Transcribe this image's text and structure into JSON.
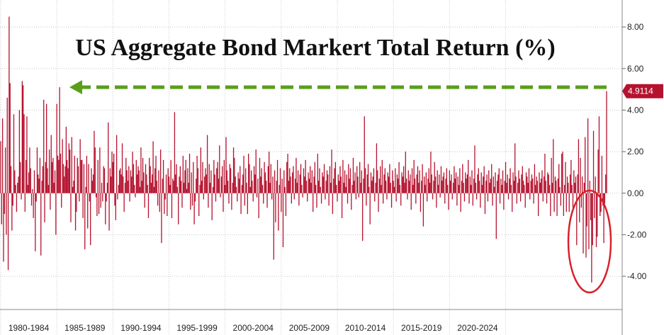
{
  "chart_data": {
    "type": "bar",
    "title": "US Aggregate Bond Markert Total Return (%)",
    "xlabel": "",
    "ylabel": "",
    "ylim": [
      -5.6,
      9.3
    ],
    "grid": true,
    "y_ticks": [
      "8.00",
      "6.00",
      "4.00",
      "2.00",
      "0.00",
      "-2.00",
      "-4.00"
    ],
    "y_tick_values": [
      8,
      6,
      4,
      2,
      0,
      -2,
      -4
    ],
    "x_period_labels": [
      "1980-1984",
      "1985-1989",
      "1990-1994",
      "1995-1999",
      "2000-2004",
      "2005-2009",
      "2010-2014",
      "2015-2019",
      "2020-2024"
    ],
    "start_year": 1980,
    "months_per_period": 60,
    "bar_color": "#b5122e",
    "arrow_color": "#5a9e1a",
    "highlight_color": "#d8202a",
    "last_value_label": "4.9114",
    "last_value": 4.9114,
    "arrow_to_value": 5.1,
    "values": [
      2.5,
      -1.5,
      3.6,
      -3.3,
      -1.0,
      2.2,
      -2.0,
      4.6,
      -3.7,
      8.5,
      5.3,
      1.3,
      -1.8,
      -0.6,
      3.8,
      1.1,
      0.4,
      -0.9,
      0.5,
      0.8,
      4.0,
      1.5,
      -0.3,
      5.4,
      5.2,
      3.8,
      -0.9,
      1.6,
      3.7,
      0.4,
      1.0,
      2.2,
      1.2,
      -0.6,
      0.2,
      -1.2,
      1.1,
      -2.8,
      -0.4,
      2.2,
      0.9,
      0.7,
      1.7,
      -3.0,
      0.6,
      1.3,
      4.5,
      -1.4,
      1.5,
      4.3,
      1.2,
      0.4,
      2.1,
      -0.8,
      2.8,
      1.5,
      1.7,
      0.5,
      1.1,
      -2.0,
      4.3,
      1.8,
      1.6,
      5.1,
      1.9,
      -0.7,
      2.6,
      1.4,
      0.8,
      1.3,
      3.2,
      1.6,
      1.2,
      2.4,
      2.1,
      -1.4,
      2.7,
      0.3,
      0.6,
      1.8,
      -1.8,
      -0.9,
      1.7,
      1.3,
      -0.4,
      2.6,
      1.6,
      1.6,
      -1.2,
      1.4,
      -2.7,
      0.3,
      1.8,
      -1.7,
      1.4,
      -0.4,
      -2.5,
      1.2,
      0.6,
      0.9,
      3.0,
      2.2,
      -0.2,
      -1.1,
      1.6,
      -1.0,
      2.2,
      -0.7,
      0.5,
      -0.4,
      1.3,
      1.2,
      -1.5,
      -0.4,
      0.5,
      3.4,
      -1.8,
      1.2,
      0.8,
      2.0,
      1.5,
      1.9,
      -0.6,
      -1.3,
      2.8,
      -0.3,
      0.4,
      1.1,
      1.2,
      0.9,
      2.4,
      0.8,
      -0.9,
      0.5,
      1.7,
      1.1,
      0.6,
      1.3,
      -0.4,
      1.1,
      0.8,
      2.0,
      1.4,
      0.4,
      -0.2,
      1.6,
      0.9,
      1.3,
      1.1,
      0.3,
      2.2,
      0.6,
      1.7,
      1.0,
      -0.7,
      1.4,
      0.9,
      0.4,
      -1.2,
      1.7,
      1.3,
      0.5,
      0.9,
      2.5,
      0.3,
      1.2,
      1.8,
      0.6,
      -0.6,
      1.1,
      -0.9,
      2.1,
      -2.4,
      0.7,
      1.6,
      -1.0,
      -0.3,
      0.9,
      -1.1,
      1.2,
      0.8,
      0.4,
      1.6,
      -1.2,
      0.7,
      0.6,
      3.9,
      0.9,
      1.4,
      0.3,
      -1.5,
      0.8,
      1.3,
      0.6,
      -0.7,
      1.8,
      0.5,
      1.1,
      1.6,
      0.2,
      1.2,
      0.5,
      1.9,
      -0.8,
      1.0,
      -0.6,
      1.5,
      -1.5,
      -0.4,
      0.7,
      1.8,
      1.2,
      -1.1,
      0.4,
      2.2,
      0.6,
      1.5,
      -0.3,
      0.8,
      1.2,
      0.9,
      2.8,
      -0.7,
      1.4,
      0.5,
      1.1,
      -1.3,
      0.3,
      1.6,
      0.9,
      -0.4,
      1.2,
      1.5,
      0.7,
      2.3,
      -0.2,
      0.8,
      1.3,
      -0.9,
      1.6,
      0.4,
      2.7,
      1.1,
      0.6,
      -0.5,
      1.4,
      1.2,
      -0.8,
      0.5,
      2.2,
      1.7,
      0.8,
      0.3,
      -0.4,
      1.0,
      0.7,
      1.3,
      -1.0,
      0.4,
      0.9,
      1.8,
      -0.6,
      1.2,
      0.5,
      -1.0,
      1.9,
      1.4,
      0.3,
      1.1,
      0.6,
      -0.4,
      1.3,
      0.9,
      2.1,
      -0.2,
      0.7,
      -1.2,
      1.7,
      0.8,
      1.2,
      0.4,
      -0.5,
      1.5,
      1.0,
      0.6,
      -0.7,
      1.3,
      2.0,
      0.5,
      1.4,
      -0.3,
      0.8,
      -3.2,
      1.1,
      -1.4,
      0.6,
      1.6,
      -1.8,
      0.4,
      1.2,
      -0.9,
      0.7,
      -2.6,
      1.1,
      0.3,
      -1.1,
      1.5,
      1.9,
      0.6,
      1.2,
      0.8,
      -0.5,
      1.0,
      1.3,
      -0.3,
      0.7,
      1.7,
      0.5,
      1.1,
      -0.6,
      0.9,
      1.4,
      0.4,
      -0.2,
      1.2,
      0.8,
      1.6,
      0.6,
      -0.4,
      1.0,
      0.7,
      1.3,
      0.5,
      1.1,
      -0.9,
      0.8,
      1.5,
      0.4,
      -0.7,
      1.9,
      0.6,
      1.2,
      0.3,
      -0.5,
      1.0,
      0.8,
      1.4,
      -0.3,
      0.6,
      1.1,
      0.9,
      -0.6,
      1.3,
      0.5,
      2.1,
      -1.0,
      0.7,
      1.2,
      1.5,
      0.4,
      -0.4,
      0.9,
      0.6,
      1.3,
      0.8,
      -1.2,
      1.6,
      0.5,
      1.1,
      0.3,
      0.9,
      -0.5,
      1.4,
      0.7,
      1.2,
      -0.8,
      0.4,
      1.7,
      0.6,
      1.0,
      -0.3,
      1.3,
      0.8,
      -0.2,
      1.5,
      0.5,
      1.1,
      -2.3,
      0.7,
      3.7,
      1.2,
      -0.6,
      0.9,
      1.4,
      0.3,
      -1.5,
      1.0,
      0.6,
      0.8,
      1.2,
      -0.4,
      0.5,
      2.4,
      1.1,
      -0.9,
      0.7,
      1.3,
      0.4,
      1.6,
      -0.5,
      0.9,
      1.2,
      0.6,
      -0.3,
      1.0,
      0.8,
      1.4,
      0.5,
      -0.7,
      1.1,
      0.6,
      0.3,
      1.2,
      -0.4,
      0.9,
      0.7,
      1.5,
      0.4,
      -0.6,
      1.0,
      0.8,
      1.3,
      0.5,
      2.0,
      0.7,
      -0.3,
      1.1,
      0.6,
      0.9,
      -0.8,
      1.2,
      0.4,
      1.6,
      0.7,
      -0.5,
      0.9,
      1.3,
      0.5,
      1.1,
      -0.9,
      0.6,
      1.4,
      -1.6,
      0.8,
      0.4,
      1.0,
      -0.4,
      0.7,
      1.2,
      0.5,
      2.0,
      0.9,
      -0.3,
      0.6,
      1.5,
      0.8,
      -0.7,
      1.1,
      0.4,
      0.9,
      -0.2,
      1.3,
      0.6,
      0.8,
      1.0,
      -0.5,
      0.7,
      1.2,
      0.4,
      -0.8,
      1.1,
      0.6,
      0.9,
      -0.3,
      0.5,
      1.3,
      0.7,
      1.0,
      -0.6,
      0.8,
      0.4,
      1.2,
      -0.9,
      0.6,
      1.4,
      0.5,
      -0.4,
      1.0,
      0.7,
      0.9,
      1.6,
      -0.5,
      0.8,
      0.4,
      1.1,
      -0.6,
      0.7,
      2.3,
      0.5,
      -0.3,
      0.9,
      1.2,
      0.6,
      -0.7,
      1.0,
      0.4,
      0.8,
      1.3,
      -1.0,
      0.6,
      0.9,
      -0.4,
      1.1,
      0.5,
      0.7,
      1.4,
      -0.6,
      0.8,
      0.3,
      1.0,
      -2.2,
      0.6,
      0.9,
      1.2,
      -0.5,
      0.7,
      0.4,
      1.1,
      -0.8,
      0.6,
      1.5,
      0.5,
      0.9,
      -0.3,
      0.7,
      1.2,
      0.4,
      -0.9,
      1.0,
      0.6,
      2.4,
      0.8,
      -0.5,
      0.5,
      1.1,
      0.7,
      -0.4,
      0.9,
      1.3,
      0.6,
      0.4,
      -0.7,
      1.0,
      0.8,
      0.5,
      1.2,
      -0.3,
      0.6,
      0.9,
      0.7,
      -0.5,
      1.4,
      0.4,
      0.8,
      0.6,
      -1.1,
      1.0,
      0.5,
      0.7,
      1.1,
      -0.4,
      0.8,
      1.9,
      0.6,
      -0.5,
      1.0,
      0.9,
      0.4,
      -1.1,
      1.7,
      0.5,
      2.6,
      -0.9,
      0.8,
      0.6,
      -1.1,
      0.7,
      1.4,
      0.3,
      -0.6,
      1.9,
      2.0,
      -1.1,
      0.4,
      1.5,
      -0.9,
      0.8,
      0.5,
      -0.9,
      0.9,
      1.6,
      0.4,
      -0.7,
      1.1,
      0.5,
      0.8,
      -2.5,
      0.9,
      2.6,
      -1.4,
      1.7,
      -0.7,
      0.8,
      -2.9,
      0.5,
      2.7,
      -3.1,
      -1.6,
      3.6,
      -2.7,
      0.6,
      -1.3,
      -4.3,
      -2.5,
      3.0,
      -1.2,
      0.8,
      -2.6,
      -2.1,
      2.1,
      3.7,
      -1.1,
      -0.9,
      1.8,
      -0.6,
      -2.4,
      -0.5,
      0.9,
      4.9114
    ]
  }
}
